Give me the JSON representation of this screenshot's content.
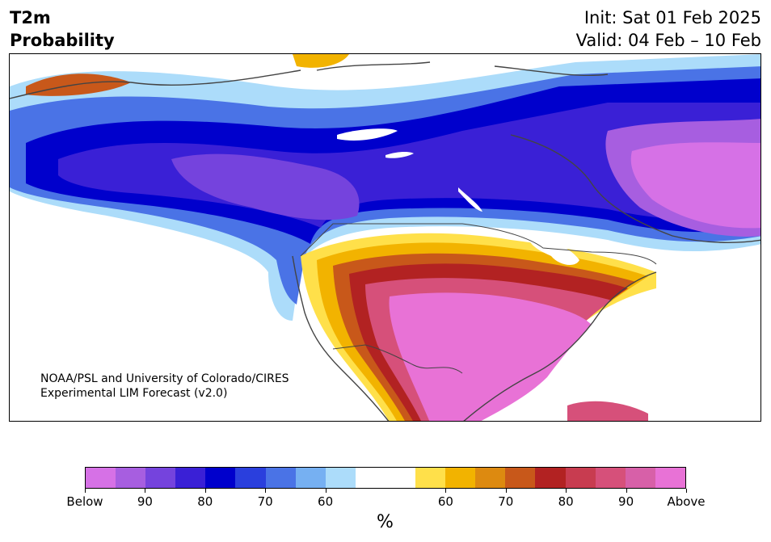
{
  "header": {
    "title_line1": "T2m",
    "title_line2": "Probability",
    "init": "Init: Sat 01 Feb 2025",
    "valid": "Valid: 04 Feb – 10 Feb"
  },
  "map": {
    "credit_line1": "NOAA/PSL and University of Colorado/CIRES",
    "credit_line2": "Experimental LIM Forecast (v2.0)"
  },
  "colorbar": {
    "colors": [
      "#d671e6",
      "#a75ee0",
      "#7543dd",
      "#3a20d6",
      "#0000cc",
      "#2a3fdd",
      "#4a73e6",
      "#76b0f2",
      "#acdcfa",
      "#ffffff",
      "#ffffff",
      "#ffe04a",
      "#f2b300",
      "#dd8a10",
      "#c8581a",
      "#b22222",
      "#c83c50",
      "#d6507a",
      "#d760a8",
      "#e872d6"
    ],
    "tick_labels": [
      "Below",
      "90",
      "80",
      "70",
      "60",
      "60",
      "70",
      "80",
      "90",
      "Above"
    ],
    "units": "%"
  }
}
